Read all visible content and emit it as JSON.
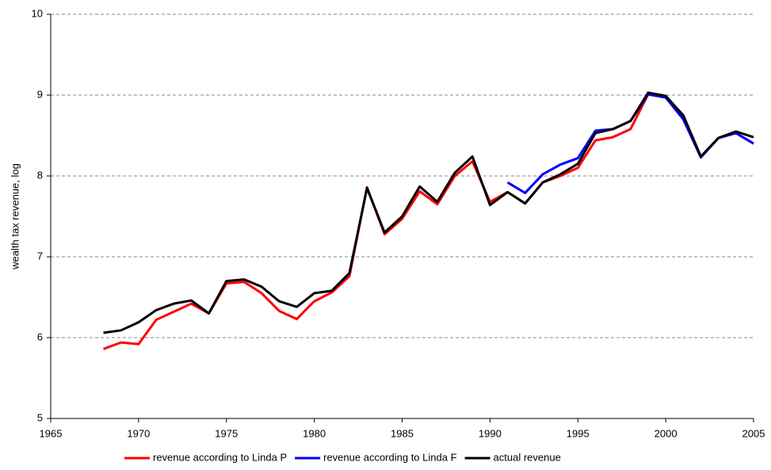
{
  "chart_data": {
    "type": "line",
    "ylabel": "wealth tax revenue, log",
    "x": [
      1968,
      1969,
      1970,
      1971,
      1972,
      1973,
      1974,
      1975,
      1976,
      1977,
      1978,
      1979,
      1980,
      1981,
      1982,
      1983,
      1984,
      1985,
      1986,
      1987,
      1988,
      1989,
      1990,
      1991,
      1992,
      1993,
      1994,
      1995,
      1996,
      1997,
      1998,
      1999,
      2000,
      2001,
      2002,
      2003,
      2004,
      2005
    ],
    "series": [
      {
        "name": "revenue according to Linda P",
        "color": "#ff0000",
        "values": [
          5.86,
          5.94,
          5.92,
          6.22,
          6.32,
          6.42,
          6.3,
          6.67,
          6.69,
          6.55,
          6.33,
          6.23,
          6.45,
          6.56,
          6.76,
          7.86,
          7.28,
          7.47,
          7.81,
          7.65,
          8.0,
          8.18,
          7.68,
          7.8,
          7.66,
          7.92,
          8.0,
          8.1,
          8.44,
          8.48,
          8.58,
          9.01,
          8.97,
          8.72,
          8.23,
          8.47,
          8.53,
          8.4
        ]
      },
      {
        "name": "revenue according to Linda F",
        "color": "#0000ff",
        "values": [
          null,
          null,
          null,
          null,
          null,
          null,
          null,
          null,
          null,
          null,
          null,
          null,
          null,
          null,
          null,
          null,
          null,
          null,
          null,
          null,
          null,
          null,
          null,
          7.92,
          7.79,
          8.02,
          8.14,
          8.22,
          8.56,
          8.58,
          8.68,
          9.01,
          8.97,
          8.7,
          8.23,
          8.47,
          8.53,
          8.4
        ]
      },
      {
        "name": "actual revenue",
        "color": "#000000",
        "values": [
          6.06,
          6.09,
          6.19,
          6.34,
          6.42,
          6.46,
          6.3,
          6.7,
          6.72,
          6.63,
          6.45,
          6.38,
          6.55,
          6.58,
          6.8,
          7.85,
          7.3,
          7.5,
          7.87,
          7.68,
          8.04,
          8.24,
          7.64,
          7.8,
          7.66,
          7.92,
          8.02,
          8.15,
          8.53,
          8.58,
          8.68,
          9.03,
          8.99,
          8.75,
          8.24,
          8.47,
          8.55,
          8.48
        ]
      }
    ],
    "xlim": [
      1965,
      2005
    ],
    "xticks": [
      1965,
      1970,
      1975,
      1980,
      1985,
      1990,
      1995,
      2000,
      2005
    ],
    "ylim": [
      5,
      10
    ],
    "yticks": [
      5,
      6,
      7,
      8,
      9,
      10
    ],
    "grid": true,
    "legend": "bottom"
  }
}
